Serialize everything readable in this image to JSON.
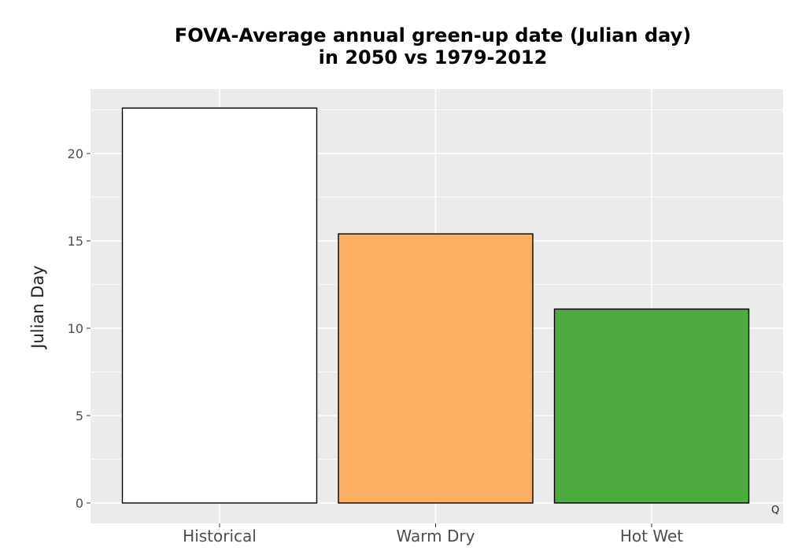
{
  "chart_data": {
    "type": "bar",
    "title": "FOVA-Average annual green-up date (Julian day)",
    "subtitle": "in 2050 vs 1979-2012",
    "ylabel": "Julian Day",
    "categories": [
      "Historical",
      "Warm Dry",
      "Hot Wet"
    ],
    "values": [
      22.6,
      15.4,
      11.1
    ],
    "colors": [
      "#ffffff",
      "#fdae61",
      "#4daa3f"
    ],
    "ylim": [
      0,
      24
    ],
    "yticks": [
      0,
      5,
      10,
      15,
      20
    ],
    "grid": true,
    "panel_background": "#ebebeb",
    "bar_outline": "#000000"
  },
  "corner_note": "Q"
}
